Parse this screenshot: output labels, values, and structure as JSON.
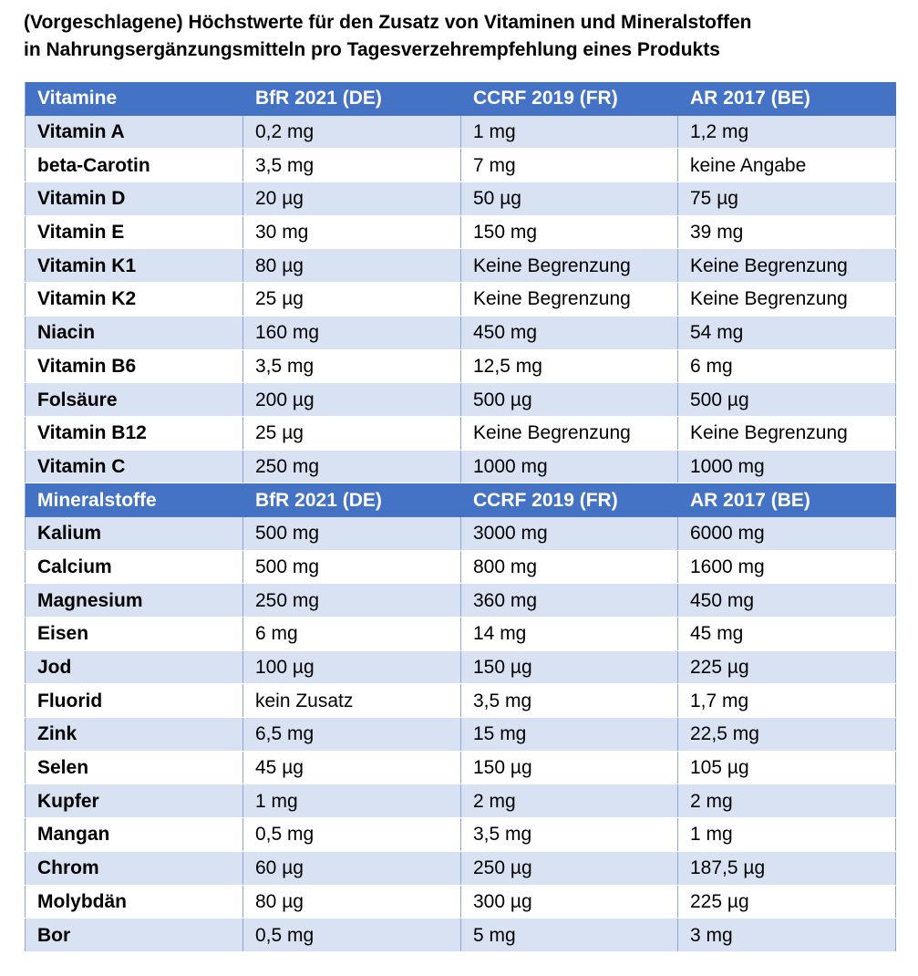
{
  "title": {
    "line1": "(Vorgeschlagene) Höchstwerte für den Zusatz von Vitaminen und Mineralstoffen",
    "line2": "in Nahrungsergänzungsmitteln pro Tagesverzehrempfehlung eines Produkts"
  },
  "colors": {
    "header_bg": "#4472c4",
    "band_bg": "#d9e2f3",
    "header_text": "#ffffff"
  },
  "vitamins": {
    "header": [
      "Vitamine",
      "BfR 2021 (DE)",
      "CCRF 2019 (FR)",
      "AR 2017 (BE)"
    ],
    "rows": [
      [
        "Vitamin A",
        "0,2 mg",
        "1 mg",
        "1,2 mg"
      ],
      [
        "beta-Carotin",
        "3,5 mg",
        "7 mg",
        "keine Angabe"
      ],
      [
        "Vitamin D",
        "20 µg",
        "50 µg",
        "75 µg"
      ],
      [
        "Vitamin E",
        "30 mg",
        "150 mg",
        "39 mg"
      ],
      [
        "Vitamin K1",
        "80 µg",
        "Keine Begrenzung",
        "Keine Begrenzung"
      ],
      [
        "Vitamin K2",
        "25 µg",
        "Keine Begrenzung",
        "Keine Begrenzung"
      ],
      [
        "Niacin",
        "160 mg",
        "450 mg",
        "54 mg"
      ],
      [
        "Vitamin B6",
        "3,5 mg",
        "12,5 mg",
        "6 mg"
      ],
      [
        "Folsäure",
        "200 µg",
        "500 µg",
        "500 µg"
      ],
      [
        "Vitamin B12",
        "25 µg",
        "Keine Begrenzung",
        "Keine Begrenzung"
      ],
      [
        "Vitamin C",
        "250 mg",
        "1000 mg",
        "1000 mg"
      ]
    ]
  },
  "minerals": {
    "header": [
      "Mineralstoffe",
      "BfR 2021 (DE)",
      "CCRF 2019 (FR)",
      "AR 2017 (BE)"
    ],
    "rows": [
      [
        "Kalium",
        "500 mg",
        "3000 mg",
        "6000 mg"
      ],
      [
        "Calcium",
        "500 mg",
        "800 mg",
        "1600 mg"
      ],
      [
        "Magnesium",
        "250 mg",
        "360 mg",
        "450 mg"
      ],
      [
        "Eisen",
        "6 mg",
        "14 mg",
        "45 mg"
      ],
      [
        "Jod",
        "100 µg",
        "150 µg",
        "225 µg"
      ],
      [
        "Fluorid",
        "kein Zusatz",
        "3,5 mg",
        "1,7 mg"
      ],
      [
        "Zink",
        "6,5 mg",
        "15 mg",
        "22,5 mg"
      ],
      [
        "Selen",
        "45 µg",
        "150 µg",
        "105 µg"
      ],
      [
        "Kupfer",
        "1 mg",
        "2 mg",
        "2 mg"
      ],
      [
        "Mangan",
        "0,5 mg",
        "3,5 mg",
        "1 mg"
      ],
      [
        "Chrom",
        "60 µg",
        "250 µg",
        "187,5 µg"
      ],
      [
        "Molybdän",
        "80 µg",
        "300 µg",
        "225 µg"
      ],
      [
        "Bor",
        "0,5 mg",
        "5 mg",
        "3 mg"
      ]
    ]
  }
}
